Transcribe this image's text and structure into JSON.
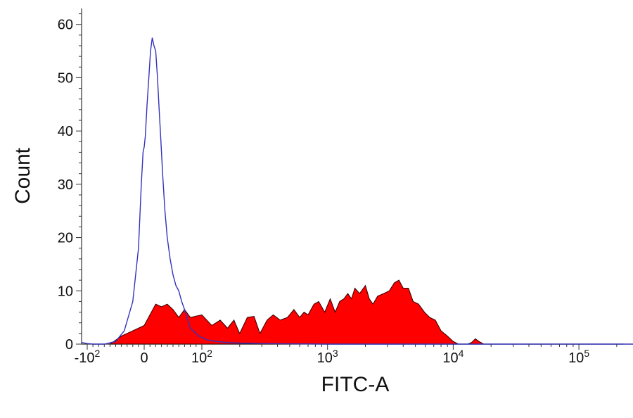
{
  "chart_data": {
    "type": "area",
    "xlabel": "FITC-A",
    "ylabel": "Count",
    "ylim": [
      0,
      63
    ],
    "x_scale": "biexponential",
    "y_ticks": [
      {
        "value": 0,
        "label": "0"
      },
      {
        "value": 10,
        "label": "10"
      },
      {
        "value": 20,
        "label": "20"
      },
      {
        "value": 30,
        "label": "30"
      },
      {
        "value": 40,
        "label": "40"
      },
      {
        "value": 50,
        "label": "50"
      },
      {
        "value": 60,
        "label": "60"
      }
    ],
    "x_ticks": [
      {
        "value": -100,
        "base": "-10",
        "exp": "2"
      },
      {
        "value": 0,
        "base": "0",
        "exp": ""
      },
      {
        "value": 100,
        "base": "10",
        "exp": "2"
      },
      {
        "value": 1000,
        "base": "10",
        "exp": "3"
      },
      {
        "value": 10000,
        "base": "10",
        "exp": "4"
      },
      {
        "value": 100000,
        "base": "10",
        "exp": "5"
      }
    ],
    "series": [
      {
        "style": "filled",
        "color": "#ff0000",
        "edge_color": "#2a0000",
        "points": [
          [
            -60,
            0
          ],
          [
            -40,
            1.5
          ],
          [
            -20,
            2.5
          ],
          [
            0,
            3.5
          ],
          [
            10,
            5.5
          ],
          [
            20,
            7.5
          ],
          [
            30,
            7.0
          ],
          [
            40,
            7.5
          ],
          [
            50,
            6.5
          ],
          [
            60,
            5.0
          ],
          [
            70,
            6.5
          ],
          [
            80,
            5.0
          ],
          [
            100,
            5.5
          ],
          [
            120,
            3.5
          ],
          [
            140,
            4.5
          ],
          [
            160,
            3.0
          ],
          [
            180,
            4.5
          ],
          [
            200,
            2.0
          ],
          [
            230,
            5.0
          ],
          [
            260,
            5.2
          ],
          [
            290,
            2.0
          ],
          [
            330,
            4.5
          ],
          [
            370,
            5.5
          ],
          [
            420,
            4.5
          ],
          [
            480,
            5.0
          ],
          [
            540,
            6.5
          ],
          [
            600,
            5.0
          ],
          [
            650,
            6.0
          ],
          [
            700,
            5.5
          ],
          [
            780,
            7.5
          ],
          [
            850,
            8.0
          ],
          [
            950,
            6.0
          ],
          [
            1050,
            8.5
          ],
          [
            1150,
            6.0
          ],
          [
            1250,
            8.0
          ],
          [
            1350,
            8.5
          ],
          [
            1450,
            9.5
          ],
          [
            1550,
            8.5
          ],
          [
            1650,
            10.5
          ],
          [
            1800,
            9.5
          ],
          [
            2000,
            11.0
          ],
          [
            2150,
            8.5
          ],
          [
            2300,
            7.5
          ],
          [
            2500,
            9.0
          ],
          [
            2800,
            9.5
          ],
          [
            3100,
            10.0
          ],
          [
            3400,
            11.5
          ],
          [
            3700,
            12.0
          ],
          [
            4000,
            10.5
          ],
          [
            4400,
            10.5
          ],
          [
            4800,
            8.0
          ],
          [
            5300,
            7.5
          ],
          [
            5900,
            6.0
          ],
          [
            6500,
            5.0
          ],
          [
            7200,
            4.5
          ],
          [
            8000,
            2.5
          ],
          [
            9000,
            1.5
          ],
          [
            10000,
            0.5
          ],
          [
            11000,
            0
          ],
          [
            13000,
            0
          ],
          [
            14000,
            0.3
          ],
          [
            15000,
            1.0
          ],
          [
            16000,
            0.5
          ],
          [
            17500,
            0
          ],
          [
            20000,
            0
          ]
        ]
      },
      {
        "style": "line",
        "color": "#3333bb",
        "points": [
          [
            -110,
            0.3
          ],
          [
            -100,
            0.1
          ],
          [
            -90,
            0
          ],
          [
            -70,
            0
          ],
          [
            -50,
            0.5
          ],
          [
            -35,
            2.5
          ],
          [
            -20,
            8
          ],
          [
            -10,
            18
          ],
          [
            -5,
            30
          ],
          [
            -2,
            36
          ],
          [
            0,
            37
          ],
          [
            2,
            39
          ],
          [
            5,
            45
          ],
          [
            8,
            50
          ],
          [
            11,
            55
          ],
          [
            14,
            57.5
          ],
          [
            17,
            56
          ],
          [
            20,
            55
          ],
          [
            23,
            50
          ],
          [
            26,
            44
          ],
          [
            29,
            38
          ],
          [
            32,
            32
          ],
          [
            36,
            25
          ],
          [
            40,
            20
          ],
          [
            45,
            16
          ],
          [
            50,
            13
          ],
          [
            55,
            11
          ],
          [
            60,
            10
          ],
          [
            65,
            8
          ],
          [
            70,
            6.5
          ],
          [
            80,
            3
          ],
          [
            95,
            1.5
          ],
          [
            110,
            0.8
          ],
          [
            130,
            0.5
          ],
          [
            160,
            0.3
          ],
          [
            200,
            0.2
          ],
          [
            300,
            0.1
          ],
          [
            500,
            0.05
          ],
          [
            1000,
            0
          ],
          [
            10000,
            0
          ],
          [
            300000,
            0
          ]
        ]
      }
    ]
  }
}
